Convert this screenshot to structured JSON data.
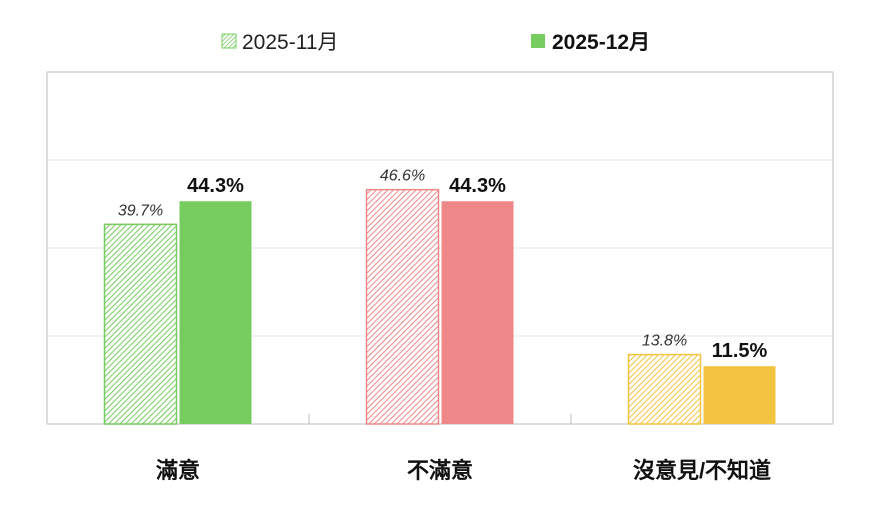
{
  "chart_data": {
    "type": "bar",
    "categories": [
      "滿意",
      "不滿意",
      "沒意見/不知道"
    ],
    "series": [
      {
        "name": "2025-11月",
        "values": [
          39.7,
          46.6,
          13.8
        ],
        "value_labels": [
          "39.7%",
          "46.6%",
          "13.8%"
        ],
        "style": "hatched"
      },
      {
        "name": "2025-12月",
        "values": [
          44.3,
          44.3,
          11.5
        ],
        "value_labels": [
          "44.3%",
          "44.3%",
          "11.5%"
        ],
        "style": "solid"
      }
    ],
    "category_colors": [
      "#76cc5f",
      "#ee8888",
      "#f2c440"
    ],
    "legend_swatch_color": "#76cc5f",
    "ylim": [
      0,
      70
    ],
    "grid": true,
    "legend_position": "top-center"
  }
}
